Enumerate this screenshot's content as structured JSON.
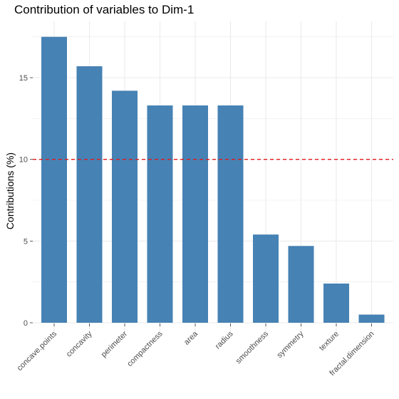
{
  "chart_data": {
    "type": "bar",
    "title": "Contribution of variables to Dim-1",
    "xlabel": "",
    "ylabel": "Contributions (%)",
    "categories": [
      "concave.points",
      "concavity",
      "perimeter",
      "compactness",
      "area",
      "radius",
      "smoothness",
      "symmetry",
      "texture",
      "fractal.dimension"
    ],
    "values": [
      17.5,
      15.7,
      14.2,
      13.3,
      13.3,
      13.3,
      5.4,
      4.7,
      2.4,
      0.5
    ],
    "ylim": [
      0,
      18
    ],
    "yticks": [
      0,
      5,
      10,
      15
    ],
    "reference_line": 10,
    "grid": true,
    "colors": {
      "bar": "#4682B4",
      "reference_line": "#E41A1C",
      "grid": "#EBEBEB"
    }
  }
}
